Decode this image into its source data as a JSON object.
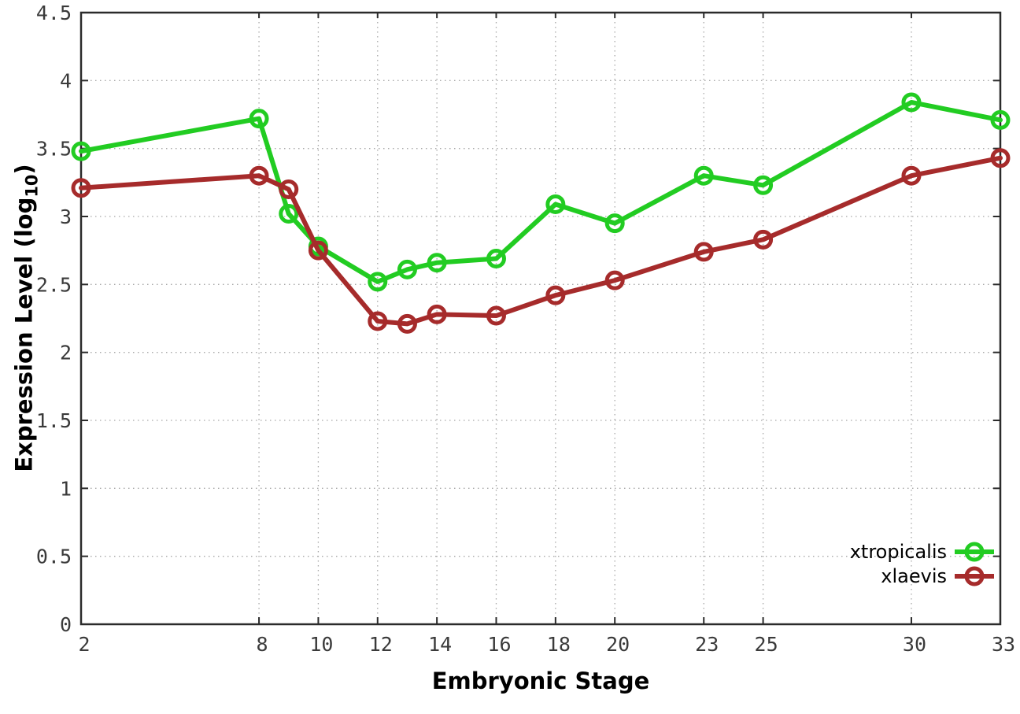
{
  "chart_data": {
    "type": "line",
    "title": "",
    "xlabel": "Embryonic Stage",
    "ylabel": "Expression Level (log10)",
    "ylabel_prefix": "Expression Level (log",
    "ylabel_sub": "10",
    "ylabel_suffix": ")",
    "x": [
      2,
      8,
      9,
      10,
      12,
      13,
      14,
      16,
      18,
      20,
      23,
      25,
      30,
      33
    ],
    "series": [
      {
        "name": "xtropicalis",
        "color": "#22cc22",
        "marker": "open-circle",
        "values": [
          3.48,
          3.72,
          3.02,
          2.78,
          2.52,
          2.61,
          2.66,
          2.69,
          3.09,
          2.95,
          3.3,
          3.23,
          3.84,
          3.71
        ]
      },
      {
        "name": "xlaevis",
        "color": "#a62b2b",
        "marker": "open-circle",
        "values": [
          3.21,
          3.3,
          3.2,
          2.75,
          2.23,
          2.21,
          2.28,
          2.27,
          2.42,
          2.53,
          2.74,
          2.83,
          3.3,
          3.43
        ]
      }
    ],
    "x_ticks": [
      2,
      8,
      10,
      12,
      14,
      16,
      18,
      20,
      23,
      25,
      30,
      33
    ],
    "y_ticks": [
      0,
      0.5,
      1,
      1.5,
      2,
      2.5,
      3,
      3.5,
      4,
      4.5
    ],
    "xlim": [
      2,
      33
    ],
    "ylim": [
      0,
      4.5
    ],
    "grid": true,
    "grid_style": "dotted",
    "legend_position": "inside-bottom-right",
    "colors": {
      "grid": "#a8a8a8",
      "frame": "#2b2b2b",
      "tick_label": "#3a3a3a",
      "axis_title": "#000000"
    }
  }
}
